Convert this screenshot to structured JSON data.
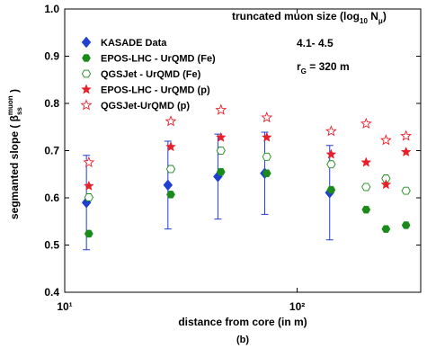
{
  "chart_data": {
    "type": "scatter",
    "xscale": "log",
    "xlim": [
      10,
      340
    ],
    "xticks": [
      {
        "value": 10,
        "label": "10¹"
      },
      {
        "value": 100,
        "label": "10²"
      }
    ],
    "ylim": [
      0.4,
      1.0
    ],
    "yticks": [
      0.4,
      0.5,
      0.6,
      0.7,
      0.8,
      0.9,
      {
        "value": 1,
        "label": "1.0"
      }
    ],
    "xlabel": "distance from core (in m)",
    "ylabel_parts": [
      "segmanted slope ( β",
      "ss",
      "muon",
      " )"
    ],
    "caption": "(b)",
    "annotation_title_parts": [
      "truncated muon size (log",
      "10",
      " N",
      "μ",
      ")"
    ],
    "annotation_range": "4.1- 4.5",
    "annotation_radius_parts": [
      "r",
      "G",
      " = 320 m"
    ],
    "legend_position": "upper left",
    "series": [
      {
        "name": "KASADE Data",
        "color": "#1f3fd0",
        "marker": "diamond",
        "x": [
          12.4,
          27.8,
          45.6,
          72.5,
          138
        ],
        "values": [
          0.59,
          0.627,
          0.645,
          0.652,
          0.611
        ],
        "errors": [
          0.1,
          0.093,
          0.09,
          0.087,
          0.1
        ]
      },
      {
        "name": "EPOS-LHC - UrQMD (Fe)",
        "color": "#1a8a1a",
        "marker": "hexagon",
        "x": [
          12.7,
          28.6,
          47,
          74,
          140,
          198,
          241,
          294
        ],
        "values": [
          0.524,
          0.607,
          0.655,
          0.652,
          0.617,
          0.575,
          0.534,
          0.542
        ]
      },
      {
        "name": "QGSJet - UrQMD (Fe)",
        "color": "#1a8a1a",
        "marker": "hexagon-open",
        "x": [
          12.7,
          28.6,
          47,
          74,
          140,
          198,
          241,
          294
        ],
        "values": [
          0.601,
          0.661,
          0.7,
          0.687,
          0.671,
          0.623,
          0.641,
          0.615
        ]
      },
      {
        "name": "EPOS-LHC - UrQMD (p)",
        "color": "#e8202a",
        "marker": "star",
        "x": [
          12.7,
          28.6,
          47,
          74,
          140,
          198,
          241,
          294
        ],
        "values": [
          0.625,
          0.708,
          0.728,
          0.728,
          0.692,
          0.675,
          0.628,
          0.697
        ]
      },
      {
        "name": "QGSJet-UrQMD (p)",
        "color": "#e8202a",
        "marker": "star-open",
        "x": [
          12.7,
          28.6,
          47,
          74,
          140,
          198,
          241,
          294
        ],
        "values": [
          0.675,
          0.762,
          0.786,
          0.77,
          0.741,
          0.757,
          0.722,
          0.731
        ]
      }
    ]
  }
}
